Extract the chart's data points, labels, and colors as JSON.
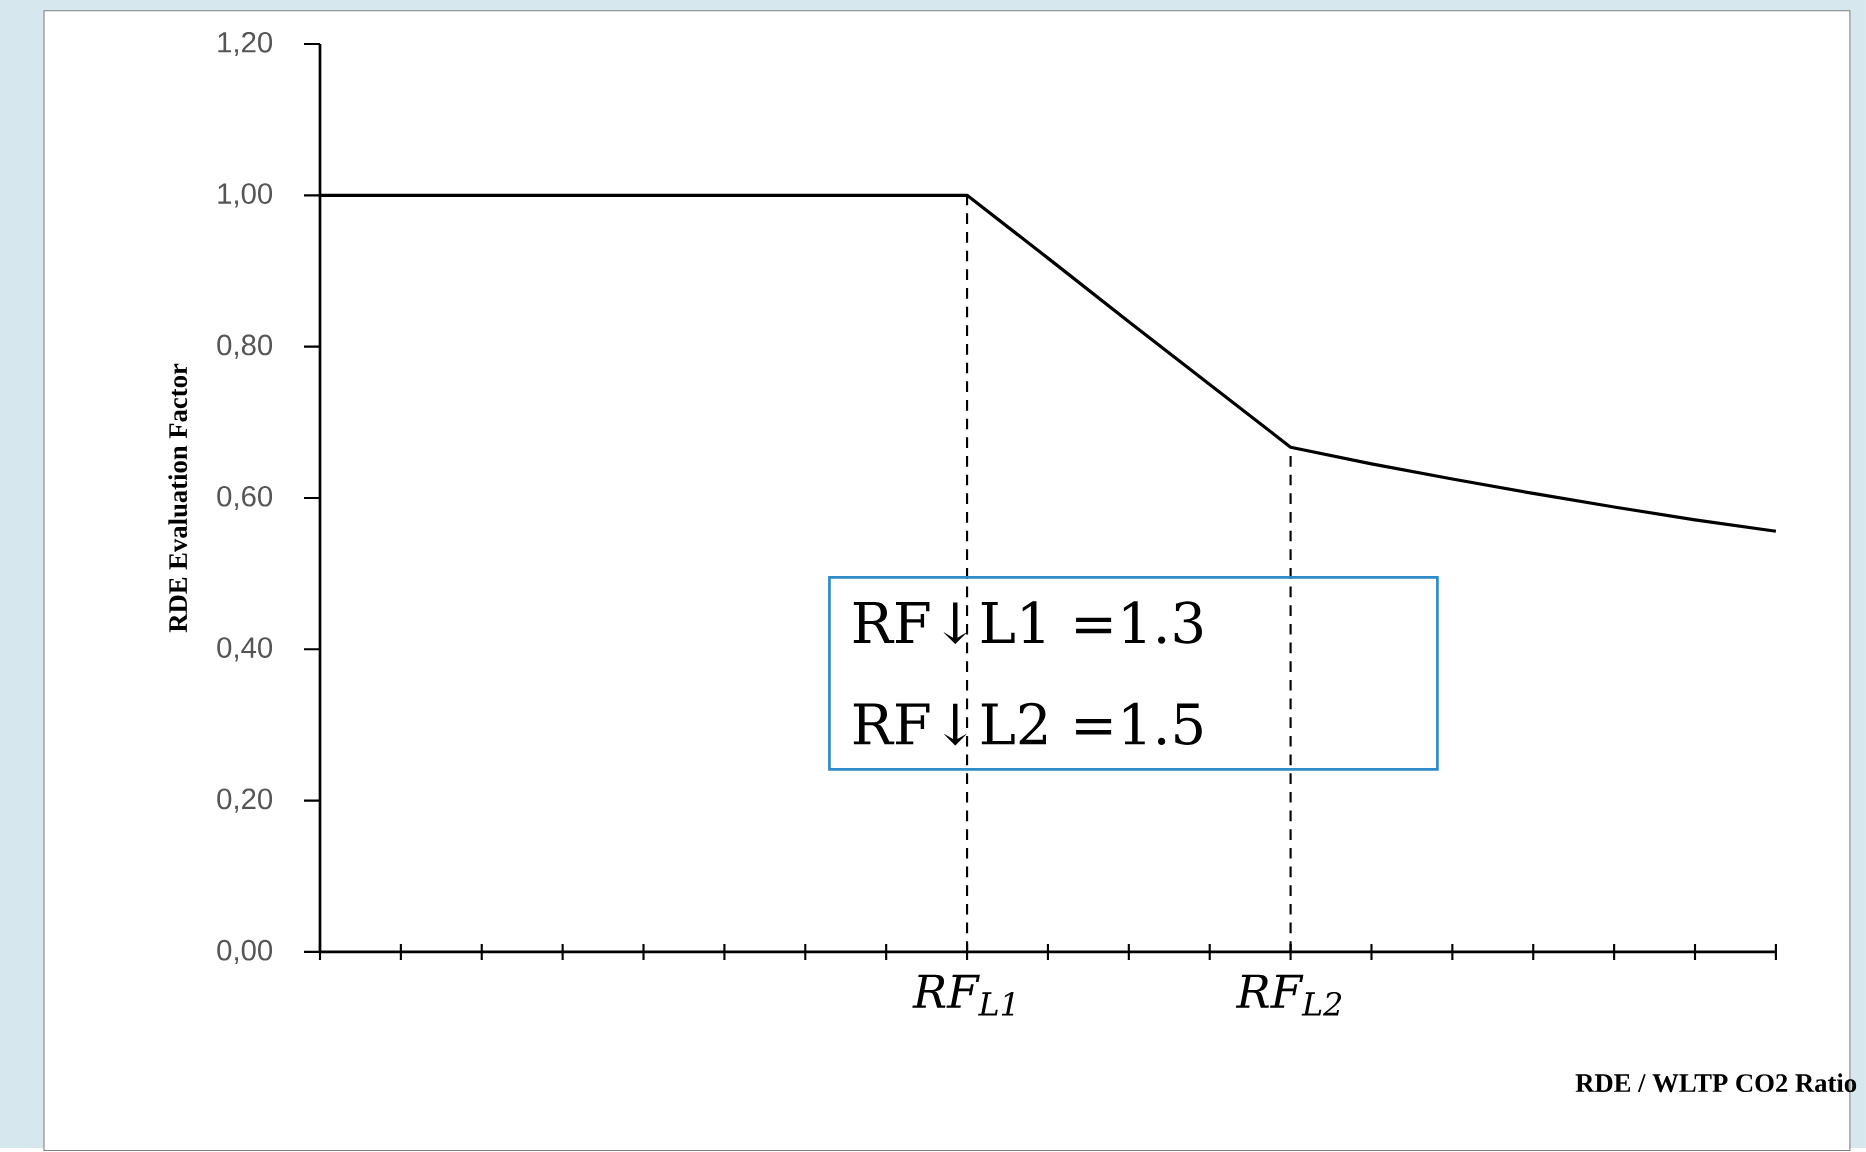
{
  "chart_data": {
    "type": "line",
    "categories": [
      null,
      null,
      null,
      null,
      null,
      null,
      null,
      null,
      "RF$_{L1}$",
      null,
      null,
      null,
      "RF$_{L2}$",
      null,
      null,
      null,
      null,
      null,
      null
    ],
    "series": [
      {
        "color": "#000000",
        "values": [
          1.0,
          1.0,
          1.0,
          1.0,
          1.0,
          1.0,
          1.0,
          1.0,
          1.0,
          0.917,
          0.833,
          0.75,
          0.667,
          0.645,
          0.625,
          0.606,
          0.588,
          0.571,
          0.556
        ]
      }
    ],
    "ylim": [
      0,
      1.2
    ],
    "yticks": [
      {
        "value": 0,
        "label": "0,00"
      },
      {
        "value": 0.2,
        "label": "0,20"
      },
      {
        "value": 0.4,
        "label": "0,40"
      },
      {
        "value": 0.6,
        "label": "0,60"
      },
      {
        "value": 0.8,
        "label": "0,80"
      },
      {
        "value": 1.0,
        "label": "1,00"
      },
      {
        "value": 1.2,
        "label": "1,20"
      }
    ],
    "xlabel": "RDE / WLTP CO2 Ratio",
    "ylabel": "RDE Evaluation Factor",
    "ref_lines": [
      {
        "axis": "x",
        "value": "RF$_{L1}$",
        "line_style": "dashed",
        "color": "#000000"
      },
      {
        "axis": "x",
        "value": "RF$_{L2}$",
        "line_style": "dashed",
        "color": "#000000"
      }
    ],
    "annotations": [
      "RF↓L1 =1.3",
      "RF↓L2 =1.5"
    ],
    "marker": "none",
    "line_style": "solid",
    "grid": false
  }
}
